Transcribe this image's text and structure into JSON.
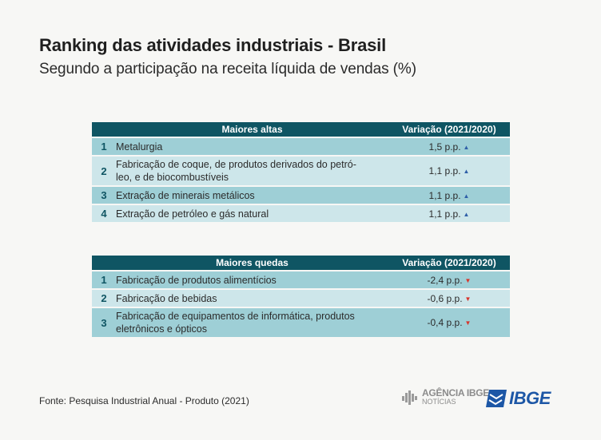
{
  "title": "Ranking das atividades industriais - Brasil",
  "subtitle": "Segundo a participação na receita líquida de vendas (%)",
  "highs": {
    "header_label": "Maiores altas",
    "header_var": "Variação (2021/2020)",
    "rows": [
      {
        "rank": "1",
        "label": "Metalurgia",
        "value": "1,5 p.p."
      },
      {
        "rank": "2",
        "label_line1": "Fabricação de coque, de produtos derivados do petró-",
        "label_line2": "leo, e de biocombustíveis",
        "value": "1,1 p.p."
      },
      {
        "rank": "3",
        "label": "Extração de minerais metálicos",
        "value": "1,1 p.p."
      },
      {
        "rank": "4",
        "label": "Extração de petróleo e gás natural",
        "value": "1,1 p.p."
      }
    ]
  },
  "lows": {
    "header_label": "Maiores quedas",
    "header_var": "Variação (2021/2020)",
    "rows": [
      {
        "rank": "1",
        "label": "Fabricação de produtos alimentícios",
        "value": "-2,4 p.p."
      },
      {
        "rank": "2",
        "label": "Fabricação de bebidas",
        "value": "-0,6 p.p."
      },
      {
        "rank": "3",
        "label_line1": "Fabricação de equipamentos de informática, produtos",
        "label_line2": "eletrônicos e ópticos",
        "value": "-0,4 p.p."
      }
    ]
  },
  "arrows": {
    "up": "▲",
    "down": "▼"
  },
  "colors": {
    "header": "#0f5563",
    "row_dark": "#9ecfd6",
    "row_light": "#cde6ea",
    "up": "#2f5fa8",
    "down": "#d8342b",
    "ibge": "#1d57a6"
  },
  "source": "Fonte: Pesquisa Industrial Anual - Produto (2021)",
  "logos": {
    "agencia_line1": "AGÊNCIA IBGE",
    "agencia_line2": "NOTÍCIAS",
    "ibge": "IBGE"
  }
}
